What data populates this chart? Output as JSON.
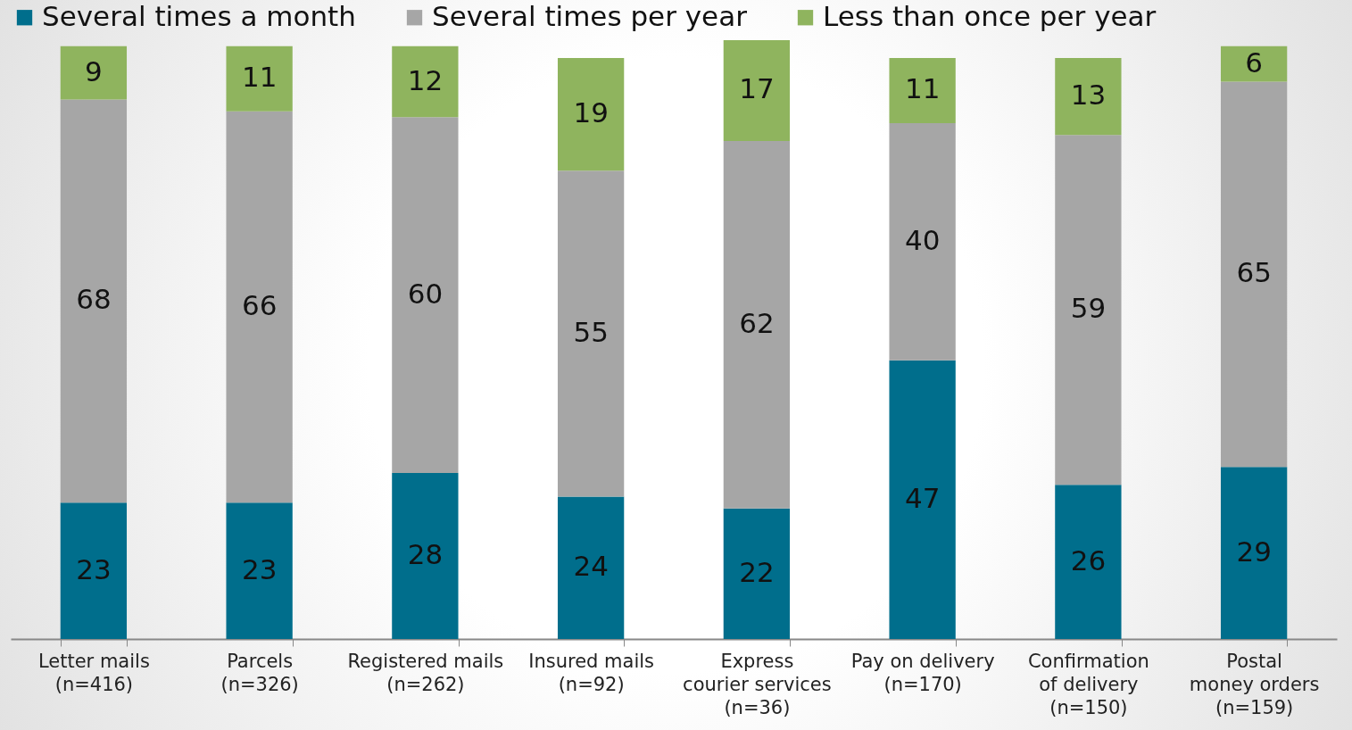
{
  "chart_data": {
    "type": "bar",
    "stacked": true,
    "data_labels": true,
    "legend": "top",
    "grid": false,
    "categories": [
      "Letter mails\n(n=416)",
      "Parcels\n(n=326)",
      "Registered mails\n(n=262)",
      "Insured mails\n(n=92)",
      "Express\ncourier services\n(n=36)",
      "Pay on delivery\n(n=170)",
      "Confirmation\nof delivery\n(n=150)",
      "Postal\nmoney orders\n(n=159)"
    ],
    "series": [
      {
        "name": "Several times a month",
        "color": "#006e8c",
        "values": [
          23,
          23,
          28,
          24,
          22,
          47,
          26,
          29
        ]
      },
      {
        "name": "Several times per year",
        "color": "#a6a6a6",
        "values": [
          68,
          66,
          60,
          55,
          62,
          40,
          59,
          65
        ]
      },
      {
        "name": "Less than once per year",
        "color": "#8fb45e",
        "values": [
          9,
          11,
          12,
          19,
          17,
          11,
          13,
          6
        ]
      }
    ]
  }
}
